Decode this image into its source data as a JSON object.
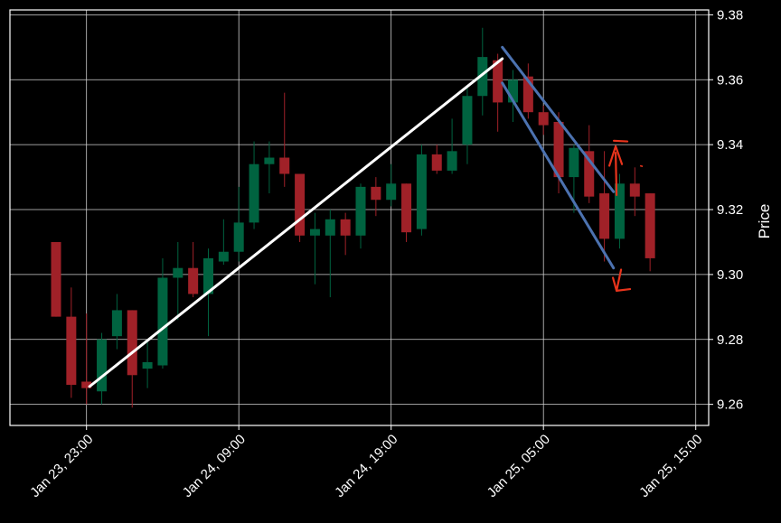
{
  "chart_data": {
    "type": "candlestick",
    "ylabel": "Price",
    "ylim": [
      9.2535,
      9.3815
    ],
    "y_ticks": [
      9.26,
      9.28,
      9.3,
      9.32,
      9.34,
      9.36,
      9.38
    ],
    "x_ticks": [
      {
        "label": "Jan 23, 23:00",
        "index": 2
      },
      {
        "label": "Jan 24, 09:00",
        "index": 12
      },
      {
        "label": "Jan 24, 19:00",
        "index": 22
      },
      {
        "label": "Jan 25, 05:00",
        "index": 32
      },
      {
        "label": "Jan 25, 15:00",
        "index": 42
      }
    ],
    "grid": true,
    "colors": {
      "up": "#006340",
      "down": "#a02128",
      "background": "#000000",
      "grid": "#cfcfcf",
      "text": "#ffffff"
    },
    "candles": [
      {
        "o": 9.31,
        "h": 9.31,
        "l": 9.287,
        "c": 9.287
      },
      {
        "o": 9.287,
        "h": 9.296,
        "l": 9.262,
        "c": 9.266
      },
      {
        "o": 9.267,
        "h": 9.288,
        "l": 9.26,
        "c": 9.265
      },
      {
        "o": 9.264,
        "h": 9.282,
        "l": 9.26,
        "c": 9.28
      },
      {
        "o": 9.281,
        "h": 9.294,
        "l": 9.277,
        "c": 9.289
      },
      {
        "o": 9.289,
        "h": 9.289,
        "l": 9.259,
        "c": 9.269
      },
      {
        "o": 9.271,
        "h": 9.28,
        "l": 9.265,
        "c": 9.273
      },
      {
        "o": 9.272,
        "h": 9.305,
        "l": 9.271,
        "c": 9.299
      },
      {
        "o": 9.299,
        "h": 9.31,
        "l": 9.286,
        "c": 9.302
      },
      {
        "o": 9.302,
        "h": 9.31,
        "l": 9.293,
        "c": 9.294
      },
      {
        "o": 9.294,
        "h": 9.308,
        "l": 9.281,
        "c": 9.305
      },
      {
        "o": 9.304,
        "h": 9.317,
        "l": 9.303,
        "c": 9.307
      },
      {
        "o": 9.307,
        "h": 9.327,
        "l": 9.304,
        "c": 9.316
      },
      {
        "o": 9.316,
        "h": 9.341,
        "l": 9.314,
        "c": 9.334
      },
      {
        "o": 9.334,
        "h": 9.341,
        "l": 9.325,
        "c": 9.336
      },
      {
        "o": 9.336,
        "h": 9.356,
        "l": 9.327,
        "c": 9.331
      },
      {
        "o": 9.331,
        "h": 9.331,
        "l": 9.31,
        "c": 9.312
      },
      {
        "o": 9.312,
        "h": 9.319,
        "l": 9.297,
        "c": 9.314
      },
      {
        "o": 9.312,
        "h": 9.32,
        "l": 9.293,
        "c": 9.317
      },
      {
        "o": 9.317,
        "h": 9.319,
        "l": 9.306,
        "c": 9.312
      },
      {
        "o": 9.312,
        "h": 9.328,
        "l": 9.308,
        "c": 9.327
      },
      {
        "o": 9.327,
        "h": 9.33,
        "l": 9.318,
        "c": 9.323
      },
      {
        "o": 9.323,
        "h": 9.334,
        "l": 9.321,
        "c": 9.328
      },
      {
        "o": 9.328,
        "h": 9.328,
        "l": 9.31,
        "c": 9.313
      },
      {
        "o": 9.314,
        "h": 9.34,
        "l": 9.312,
        "c": 9.337
      },
      {
        "o": 9.337,
        "h": 9.34,
        "l": 9.331,
        "c": 9.332
      },
      {
        "o": 9.332,
        "h": 9.348,
        "l": 9.331,
        "c": 9.338
      },
      {
        "o": 9.34,
        "h": 9.358,
        "l": 9.334,
        "c": 9.355
      },
      {
        "o": 9.355,
        "h": 9.376,
        "l": 9.349,
        "c": 9.367
      },
      {
        "o": 9.366,
        "h": 9.368,
        "l": 9.344,
        "c": 9.353
      },
      {
        "o": 9.353,
        "h": 9.363,
        "l": 9.347,
        "c": 9.36
      },
      {
        "o": 9.361,
        "h": 9.365,
        "l": 9.348,
        "c": 9.35
      },
      {
        "o": 9.35,
        "h": 9.352,
        "l": 9.343,
        "c": 9.346
      },
      {
        "o": 9.347,
        "h": 9.35,
        "l": 9.325,
        "c": 9.33
      },
      {
        "o": 9.33,
        "h": 9.34,
        "l": 9.319,
        "c": 9.339
      },
      {
        "o": 9.338,
        "h": 9.346,
        "l": 9.322,
        "c": 9.324
      },
      {
        "o": 9.325,
        "h": 9.338,
        "l": 9.304,
        "c": 9.311
      },
      {
        "o": 9.311,
        "h": 9.331,
        "l": 9.308,
        "c": 9.328
      },
      {
        "o": 9.328,
        "h": 9.333,
        "l": 9.318,
        "c": 9.324
      },
      {
        "o": 9.325,
        "h": 9.325,
        "l": 9.301,
        "c": 9.305
      }
    ],
    "annotations": {
      "white_line": {
        "from": {
          "index": 2.2,
          "price": 9.2655
        },
        "to": {
          "index": 29.3,
          "price": 9.3665
        },
        "color": "#ffffff"
      },
      "blue_channel_upper": {
        "from": {
          "index": 29.3,
          "price": 9.37
        },
        "to": {
          "index": 36.6,
          "price": 9.3255
        },
        "color": "#4c72b0"
      },
      "blue_channel_lower": {
        "from": {
          "index": 29.3,
          "price": 9.359
        },
        "to": {
          "index": 36.6,
          "price": 9.302
        },
        "color": "#4c72b0"
      },
      "red_marks_color": "#e8341c"
    }
  }
}
